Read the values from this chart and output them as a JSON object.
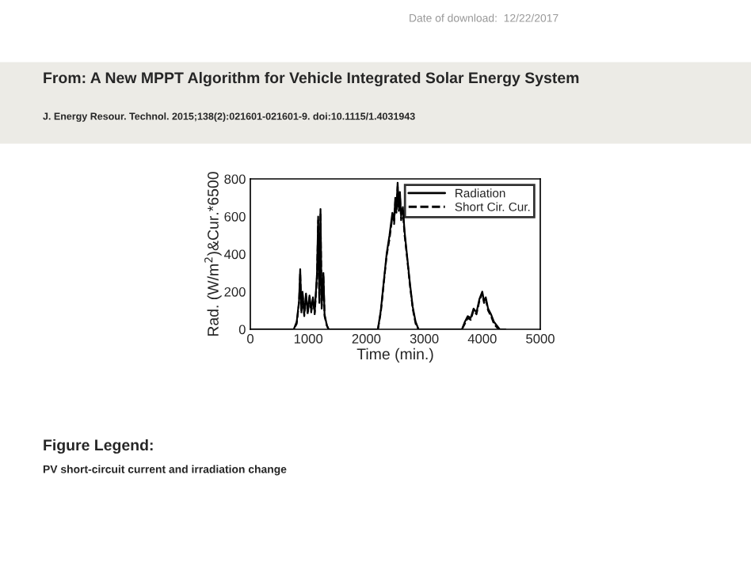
{
  "chart_data": {
    "type": "line",
    "title": "From: A New MPPT Algorithm for Vehicle Integrated Solar Energy System",
    "subtitle": "J. Energy Resour. Technol. 2015;138(2):021601-021601-9. doi:10.1115/1.4031943",
    "annotations": [
      "Date of download:  12/22/2017",
      "Figure Legend:",
      "PV short-circuit current and irradiation change"
    ],
    "xlabel": "Time (min.)",
    "ylabel": "Rad. (W/m$^{2}$)&Cur.*6500",
    "xlim": [
      0,
      5000
    ],
    "xticks": [
      0,
      1000,
      2000,
      3000,
      4000,
      5000
    ],
    "ylim": [
      0,
      800
    ],
    "yticks": [
      0,
      200,
      400,
      600,
      800
    ],
    "grid": false,
    "legend": "top right",
    "series": [
      {
        "name": "Radiation",
        "color": "#000000",
        "line_style": "solid",
        "x": [
          0,
          750,
          800,
          840,
          860,
          880,
          900,
          930,
          960,
          990,
          1020,
          1050,
          1080,
          1110,
          1150,
          1170,
          1190,
          1210,
          1230,
          1260,
          1280,
          1320,
          1350,
          2200,
          2250,
          2300,
          2350,
          2400,
          2450,
          2480,
          2500,
          2520,
          2540,
          2560,
          2580,
          2600,
          2630,
          2660,
          2700,
          2750,
          2800,
          2850,
          2900,
          3650,
          3700,
          3750,
          3800,
          3850,
          3900,
          3950,
          4000,
          4030,
          4060,
          4100,
          4150,
          4200,
          4250,
          4300,
          4400
        ],
        "values": [
          0,
          0,
          40,
          150,
          320,
          100,
          200,
          80,
          190,
          90,
          180,
          100,
          170,
          90,
          300,
          600,
          150,
          640,
          120,
          300,
          80,
          20,
          0,
          0,
          100,
          250,
          400,
          500,
          620,
          580,
          700,
          640,
          780,
          650,
          730,
          600,
          650,
          520,
          400,
          250,
          120,
          40,
          0,
          0,
          40,
          70,
          60,
          110,
          90,
          160,
          200,
          150,
          170,
          110,
          80,
          40,
          20,
          0,
          0
        ]
      },
      {
        "name": "Short Cir. Cur.",
        "color": "#000000",
        "line_style": "dashed",
        "x": [
          0,
          750,
          800,
          840,
          860,
          880,
          900,
          930,
          960,
          990,
          1020,
          1050,
          1080,
          1110,
          1150,
          1170,
          1190,
          1210,
          1230,
          1260,
          1280,
          1320,
          1350,
          2200,
          2250,
          2300,
          2350,
          2400,
          2450,
          2480,
          2500,
          2520,
          2540,
          2560,
          2580,
          2600,
          2630,
          2660,
          2700,
          2750,
          2800,
          2850,
          2900,
          3650,
          3700,
          3750,
          3800,
          3850,
          3900,
          3950,
          4000,
          4030,
          4060,
          4100,
          4150,
          4200,
          4250,
          4300,
          4400
        ],
        "values": [
          0,
          0,
          30,
          140,
          300,
          90,
          190,
          70,
          180,
          80,
          170,
          90,
          160,
          80,
          280,
          580,
          140,
          620,
          110,
          290,
          70,
          20,
          0,
          0,
          90,
          240,
          390,
          480,
          600,
          560,
          680,
          620,
          760,
          630,
          710,
          580,
          630,
          500,
          390,
          240,
          110,
          30,
          0,
          0,
          30,
          60,
          50,
          100,
          80,
          150,
          190,
          140,
          160,
          100,
          70,
          30,
          10,
          0,
          0
        ]
      }
    ]
  }
}
